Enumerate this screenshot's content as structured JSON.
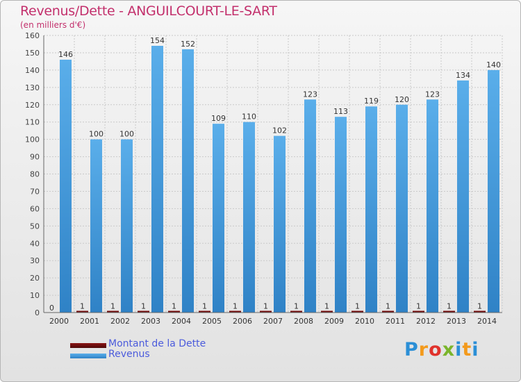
{
  "chart_data": {
    "type": "bar",
    "title": "Revenus/Dette - ANGUILCOURT-LE-SART",
    "subtitle": "(en milliers d'€)",
    "categories": [
      "2000",
      "2001",
      "2002",
      "2003",
      "2004",
      "2005",
      "2006",
      "2007",
      "2008",
      "2009",
      "2010",
      "2011",
      "2012",
      "2013",
      "2014"
    ],
    "series": [
      {
        "name": "Montant de la Dette",
        "color": "#6b0a0a",
        "values": [
          0,
          1,
          1,
          1,
          1,
          1,
          1,
          1,
          1,
          1,
          1,
          1,
          1,
          1,
          1
        ]
      },
      {
        "name": "Revenus",
        "color": "#4a9fe0",
        "values": [
          146,
          100,
          100,
          154,
          152,
          109,
          110,
          102,
          123,
          113,
          119,
          120,
          123,
          134,
          140
        ]
      }
    ],
    "ylim": [
      0,
      160
    ],
    "yticks": [
      0,
      10,
      20,
      30,
      40,
      50,
      60,
      70,
      80,
      90,
      100,
      110,
      120,
      130,
      140,
      150,
      160
    ],
    "grid": true,
    "legend": "bottom-left"
  },
  "logo_text": "Proxiti"
}
